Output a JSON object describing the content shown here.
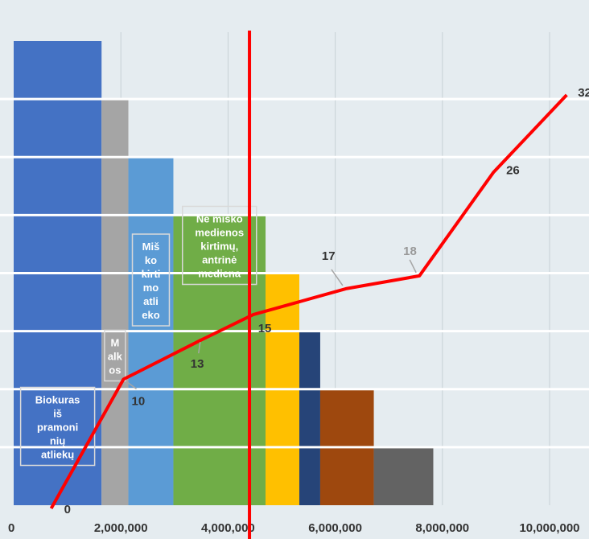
{
  "chart_data": {
    "type": "bar",
    "xlim": [
      0,
      10000000
    ],
    "x_ticks": [
      {
        "value": 0,
        "label": "0"
      },
      {
        "value": 2000000,
        "label": "2,000,000"
      },
      {
        "value": 4000000,
        "label": "4,000,000"
      },
      {
        "value": 6000000,
        "label": "6,000,000"
      },
      {
        "value": 8000000,
        "label": "8,000,000"
      },
      {
        "value": 10000000,
        "label": "10,000,000"
      }
    ],
    "grid": "vertical",
    "stacked_tiers": 8,
    "segments": [
      {
        "label_lines": [
          "Biokuras",
          "iš",
          "pramoni",
          "nių",
          "atliekų"
        ],
        "start": 0,
        "end": 1640000,
        "tiers": 8,
        "color": "#4472c4"
      },
      {
        "label_lines": [
          "M",
          "alk",
          "os"
        ],
        "start": 1640000,
        "end": 2140000,
        "tiers": 7,
        "color": "#a5a5a5"
      },
      {
        "label_lines": [
          "Miš",
          "ko",
          "kirti",
          "mo",
          "atli",
          "eko"
        ],
        "start": 2140000,
        "end": 2980000,
        "tiers": 6,
        "color": "#5b9bd5"
      },
      {
        "label_lines": [
          "Ne miško",
          "medienos",
          "kirtimų,",
          "antrinė",
          "mediena"
        ],
        "start": 2980000,
        "end": 4700000,
        "tiers": 5,
        "color": "#70ad47"
      },
      {
        "label_lines": [],
        "start": 4700000,
        "end": 5330000,
        "tiers": 4,
        "color": "#ffc000"
      },
      {
        "label_lines": [],
        "start": 5330000,
        "end": 5720000,
        "tiers": 3,
        "color": "#264478"
      },
      {
        "label_lines": [],
        "start": 5720000,
        "end": 6720000,
        "tiers": 2,
        "color": "#9e480e"
      },
      {
        "label_lines": [],
        "start": 6720000,
        "end": 7830000,
        "tiers": 1,
        "color": "#636363"
      }
    ],
    "demand_line": {
      "x": 4400000,
      "color": "#ff0000"
    },
    "cost_curve": {
      "color": "#ff0000",
      "points": [
        {
          "x": 700000,
          "label": "0",
          "label_color": "#333333"
        },
        {
          "x": 1200000,
          "label": null
        },
        {
          "x": 2050000,
          "label": "10",
          "label_color": "#333333"
        },
        {
          "x": 2300000,
          "label": null
        },
        {
          "x": 3480000,
          "label": "13",
          "label_color": "#333333"
        },
        {
          "x": 4470000,
          "label": "15",
          "label_color": "#333333"
        },
        {
          "x": 6200000,
          "label": "17",
          "label_color": "#333333"
        },
        {
          "x": 7570000,
          "label": "18",
          "label_color": "#999999"
        },
        {
          "x": 8950000,
          "label": "26",
          "label_color": "#333333"
        },
        {
          "x": 10320000,
          "label": "32",
          "label_color": "#333333"
        }
      ]
    }
  }
}
